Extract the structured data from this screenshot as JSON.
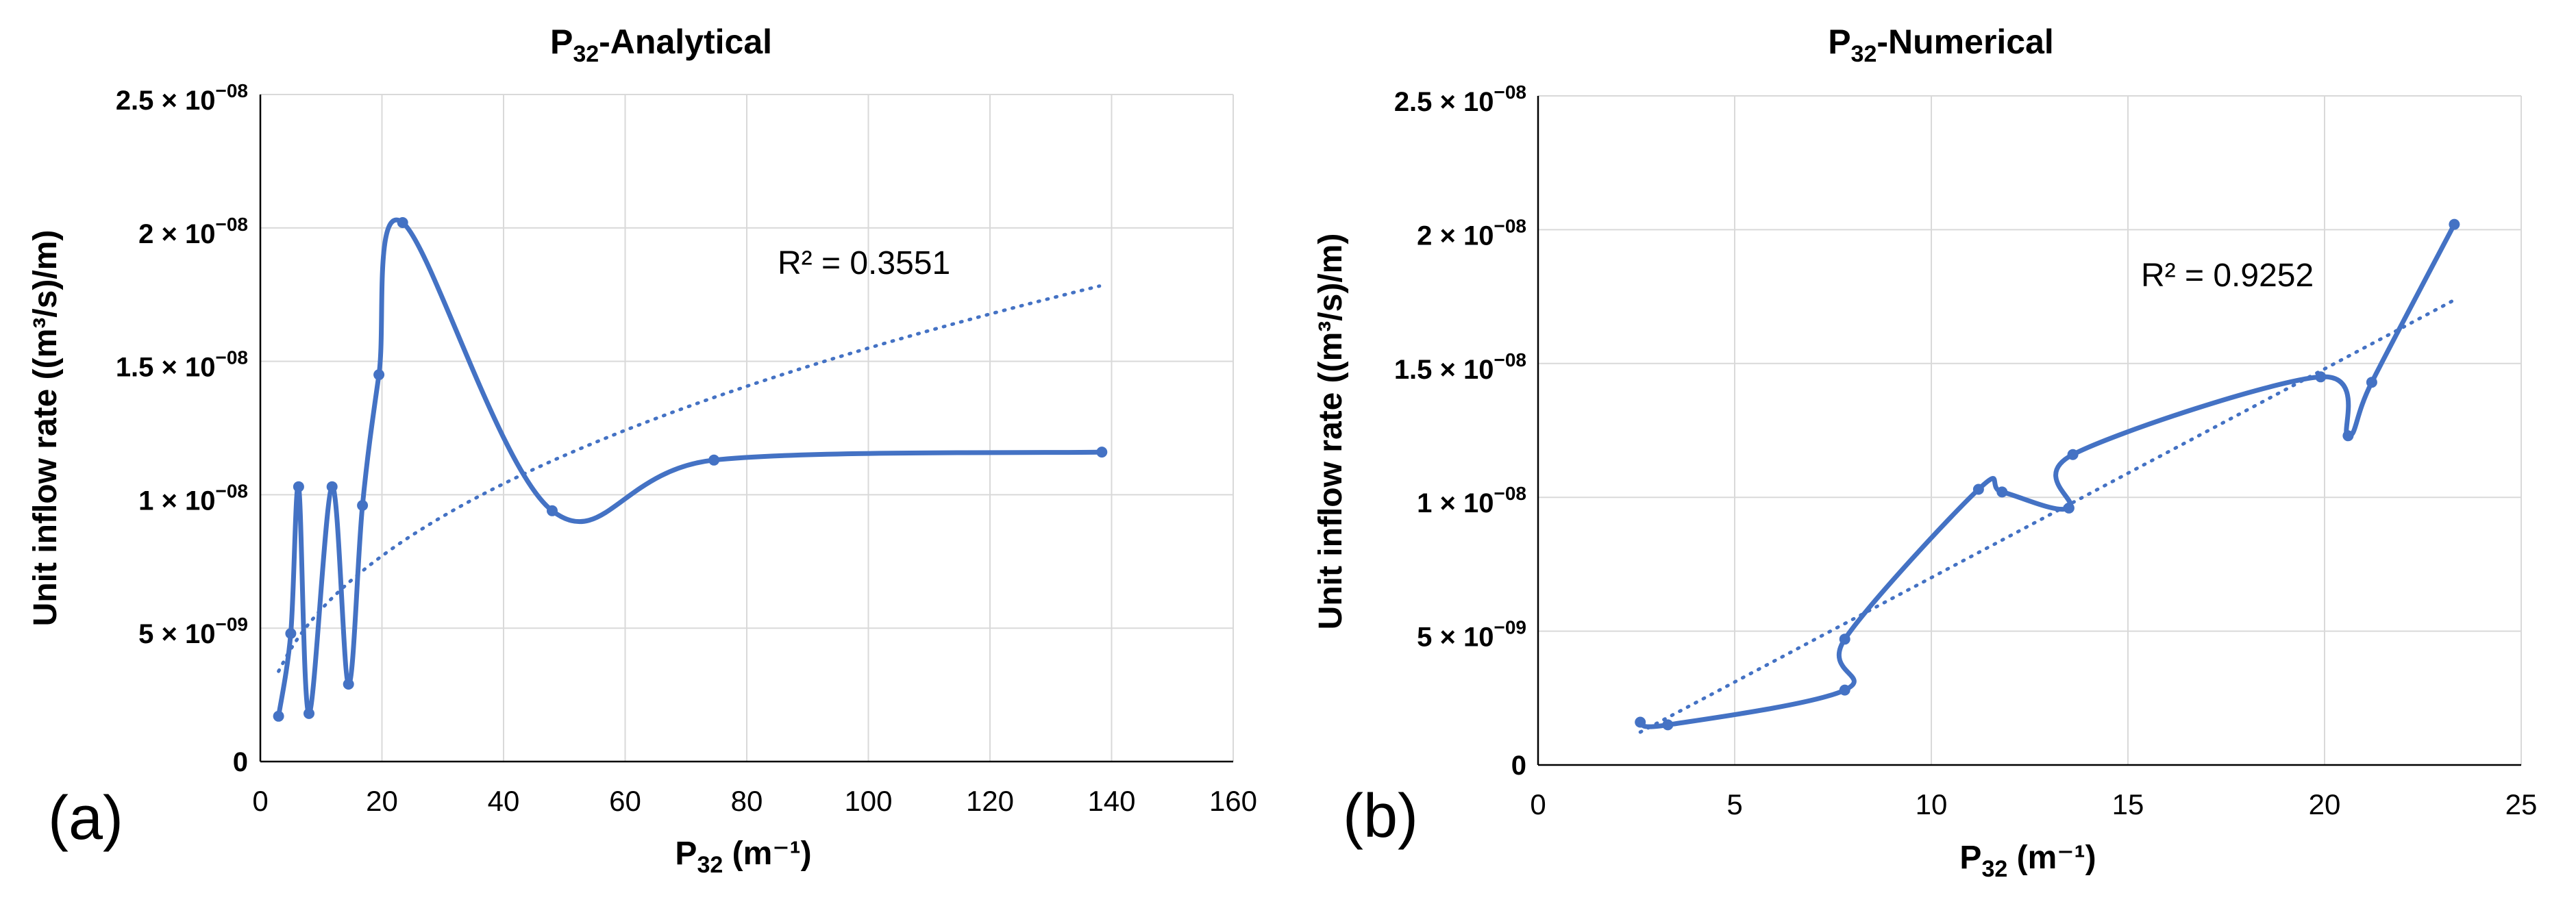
{
  "chart_data": [
    {
      "type": "line",
      "title_main": "P",
      "title_sub": "32",
      "title_rest": "-Analytical",
      "xlabel_main": "P",
      "xlabel_sub": "32",
      "xlabel_rest": " (m⁻¹)",
      "ylabel": "Unit inflow rate ((m³/s)/m)",
      "xlim": [
        0,
        160
      ],
      "ylim": [
        0,
        2.5e-08
      ],
      "x_ticks": [
        0,
        20,
        40,
        60,
        80,
        100,
        120,
        140,
        160
      ],
      "x_tick_labels": [
        "0",
        "20",
        "40",
        "60",
        "80",
        "100",
        "120",
        "140",
        "160"
      ],
      "y_ticks": [
        0,
        5e-09,
        1e-08,
        1.5e-08,
        2e-08,
        2.5e-08
      ],
      "y_tick_labels": [
        {
          "mant": "0",
          "exp": ""
        },
        {
          "mant": "5 × 10",
          "exp": "−09"
        },
        {
          "mant": "1 × 10",
          "exp": "−08"
        },
        {
          "mant": "1.5 × 10",
          "exp": "−08"
        },
        {
          "mant": "2 × 10",
          "exp": "−08"
        },
        {
          "mant": "2.5 × 10",
          "exp": "−08"
        }
      ],
      "grid": true,
      "panel_label": "(a)",
      "r2_label": "R² = 0.3551",
      "series": [
        {
          "name": "Unit inflow rate",
          "color": "#4472c4",
          "x": [
            3,
            5,
            6.3,
            8,
            11.8,
            14.5,
            16.8,
            19.5,
            23.4,
            48,
            74.6,
            138.4
          ],
          "y": [
            1.7e-09,
            4.8e-09,
            1.03e-08,
            1.8e-09,
            1.03e-08,
            2.9e-09,
            9.6e-09,
            1.45e-08,
            2.02e-08,
            9.4e-09,
            1.13e-08,
            1.16e-08
          ]
        }
      ],
      "trendline": {
        "type": "power",
        "color": "#4472c4",
        "a": 2.1e-09,
        "b": 0.434,
        "x_range": [
          3,
          138
        ]
      }
    },
    {
      "type": "line",
      "title_main": "P",
      "title_sub": "32",
      "title_rest": "-Numerical",
      "xlabel_main": "P",
      "xlabel_sub": "32",
      "xlabel_rest": " (m⁻¹)",
      "ylabel": "Unit inflow rate ((m³/s)/m)",
      "xlim": [
        0,
        25
      ],
      "ylim": [
        0,
        2.5e-08
      ],
      "x_ticks": [
        0,
        5,
        10,
        15,
        20,
        25
      ],
      "x_tick_labels": [
        "0",
        "5",
        "10",
        "15",
        "20",
        "25"
      ],
      "y_ticks": [
        0,
        5e-09,
        1e-08,
        1.5e-08,
        2e-08,
        2.5e-08
      ],
      "y_tick_labels": [
        {
          "mant": "0",
          "exp": ""
        },
        {
          "mant": "5 × 10",
          "exp": "−09"
        },
        {
          "mant": "1 × 10",
          "exp": "−08"
        },
        {
          "mant": "1.5 × 10",
          "exp": "−08"
        },
        {
          "mant": "2 × 10",
          "exp": "−08"
        },
        {
          "mant": "2.5 × 10",
          "exp": "−08"
        }
      ],
      "grid": true,
      "panel_label": "(b)",
      "r2_label": "R² = 0.9252",
      "series": [
        {
          "name": "Unit inflow rate",
          "color": "#4472c4",
          "x": [
            2.6,
            3.3,
            7.8,
            7.8,
            11.2,
            11.8,
            13.5,
            13.6,
            19.9,
            20.6,
            21.2,
            23.3
          ],
          "y": [
            1.6e-09,
            1.5e-09,
            2.8e-09,
            4.7e-09,
            1.03e-08,
            1.02e-08,
            9.6e-09,
            1.16e-08,
            1.45e-08,
            1.23e-08,
            1.43e-08,
            2.02e-08
          ]
        }
      ],
      "trendline": {
        "type": "linear",
        "color": "#4472c4",
        "slope": 7.8e-10,
        "intercept": -8e-10,
        "x_range": [
          2.6,
          23.3
        ]
      }
    }
  ]
}
